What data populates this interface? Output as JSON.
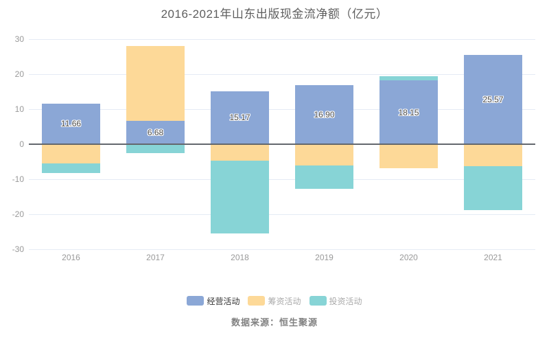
{
  "chart_data": {
    "type": "bar",
    "stacked": true,
    "title": "2016-2021年山东出版现金流净额（亿元）",
    "categories": [
      "2016",
      "2017",
      "2018",
      "2019",
      "2020",
      "2021"
    ],
    "series": [
      {
        "name": "经营活动",
        "color": "#8BA7D6",
        "values": [
          11.66,
          6.68,
          15.17,
          16.9,
          18.15,
          25.57
        ],
        "labels": [
          "11.66",
          "6.68",
          "15.17",
          "16.90",
          "18.15",
          "25.57"
        ]
      },
      {
        "name": "筹资活动",
        "color": "#FDD998",
        "values": [
          -5.5,
          21.4,
          -4.8,
          -6.1,
          -6.9,
          -6.3
        ]
      },
      {
        "name": "投资活动",
        "color": "#87D4D6",
        "values": [
          -2.7,
          -2.6,
          -20.6,
          -6.6,
          1.2,
          -12.5
        ]
      }
    ],
    "ylim": [
      -30,
      30
    ],
    "ytick_interval": 10,
    "grid": true,
    "legend_position": "bottom",
    "xlabel": "",
    "ylabel": ""
  },
  "source_note": "数据来源：恒生聚源"
}
